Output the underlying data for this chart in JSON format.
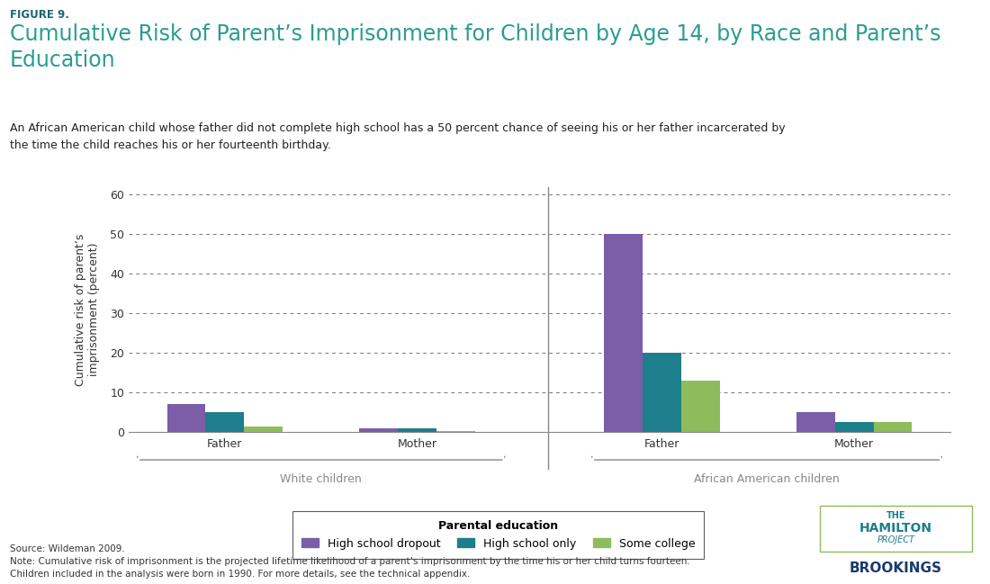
{
  "figure_label": "FIGURE 9.",
  "title": "Cumulative Risk of Parent’s Imprisonment for Children by Age 14, by Race and Parent’s\nEducation",
  "subtitle": "An African American child whose father did not complete high school has a 50 percent chance of seeing his or her father incarcerated by\nthe time the child reaches his or her fourteenth birthday.",
  "ylabel": "Cumulative risk of parent’s\nimprisonment (percent)",
  "ylim": [
    0,
    62
  ],
  "yticks": [
    0,
    10,
    20,
    30,
    40,
    50,
    60
  ],
  "group_labels": [
    "Father",
    "Mother",
    "Father",
    "Mother"
  ],
  "race_labels": [
    "White children",
    "African American children"
  ],
  "series": {
    "High school dropout": [
      7,
      1,
      50,
      5
    ],
    "High school only": [
      5,
      1,
      20,
      2.5
    ],
    "Some college": [
      1.5,
      0.4,
      13,
      2.5
    ]
  },
  "colors": {
    "High school dropout": "#7b5ea7",
    "High school only": "#1d7e8c",
    "Some college": "#8fbc5a"
  },
  "legend_title": "Parental education",
  "source_text": "Source: Wildeman 2009.\nNote: Cumulative risk of imprisonment is the projected lifetime likelihood of a parent’s imprisonment by the time his or her child turns fourteen.\nChildren included in the analysis were born in 1990. For more details, see the technical appendix.",
  "title_color": "#2a9d8f",
  "figure_label_color": "#1a6670",
  "background_color": "#ffffff",
  "bracket_color": "#888888",
  "race_label_color": "#b87333",
  "group_centers": [
    0,
    1.1,
    2.5,
    3.6
  ],
  "xlim": [
    -0.55,
    4.15
  ],
  "bar_width": 0.22,
  "divider_x": 1.85
}
